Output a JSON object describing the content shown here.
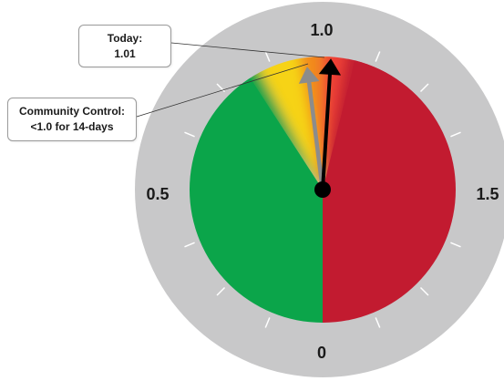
{
  "gauge": {
    "scale_labels": {
      "top": "1.0",
      "left": "0.5",
      "right": "1.5",
      "bottom": "0"
    },
    "current_value": 1.01,
    "target_value": 0.98,
    "colors": {
      "ring": "#c8c8c9",
      "green": "#0ba54a",
      "red": "#c21b30",
      "yellow": "#f6d314",
      "orange": "#f28a1e",
      "light_red": "#ee3f36",
      "needle_today": "#000000",
      "needle_target": "#8c8c8c",
      "tick": "#ffffff"
    }
  },
  "callouts": {
    "today": {
      "title": "Today:",
      "value": "1.01"
    },
    "community": {
      "title": "Community Control:",
      "value": "<1.0 for 14-days"
    }
  }
}
